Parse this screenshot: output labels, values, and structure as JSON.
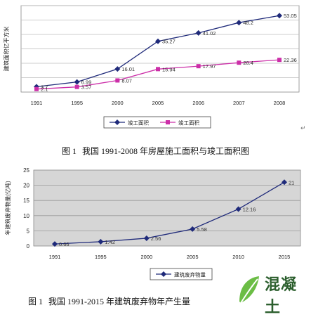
{
  "captions": {
    "fig1_label": "图 1",
    "fig1_text": "我国 1991-2008 年房屋施工面积与竣工面积图",
    "fig2_label": "图 1",
    "fig2_text": "我国 1991-2015 年建筑废弃物年产生量"
  },
  "logo": {
    "text": "混凝土"
  },
  "chart_data": [
    {
      "type": "line",
      "title": "",
      "ylabel": "建筑面积亿平方米",
      "xlabel": "",
      "categories": [
        "1991",
        "1995",
        "2000",
        "2005",
        "2006",
        "2007",
        "2008"
      ],
      "ylim": [
        0,
        60
      ],
      "grid": true,
      "legend": "bottom",
      "series": [
        {
          "name": "竣工面积",
          "color": "#1f2a7a",
          "marker": "diamond",
          "values": [
            3.7,
            6.99,
            16.01,
            35.27,
            41.02,
            48.2,
            53.05
          ],
          "labels": [
            "3.7",
            "6.99",
            "16.01",
            "35.27",
            "41.02",
            "48.2",
            "53.05"
          ]
        },
        {
          "name": "竣工面积",
          "color": "#cc2ea8",
          "marker": "square",
          "values": [
            2.1,
            3.57,
            8.07,
            15.94,
            17.97,
            20.4,
            22.36
          ],
          "labels": [
            "2.1",
            "3.57",
            "8.07",
            "15.94",
            "17.97",
            "20.4",
            "22.36"
          ]
        }
      ]
    },
    {
      "type": "line",
      "title": "",
      "ylabel": "年建筑废弃物量(亿吨)",
      "xlabel": "",
      "categories": [
        "1991",
        "1995",
        "2000",
        "2005",
        "2010",
        "2015"
      ],
      "ylim": [
        0,
        25
      ],
      "yticks": [
        0,
        5,
        10,
        15,
        20,
        25
      ],
      "grid": true,
      "background": "#d6d6d6",
      "legend": "bottom",
      "series": [
        {
          "name": "建筑废弃物量",
          "color": "#1f2a7a",
          "marker": "diamond",
          "values": [
            0.66,
            1.42,
            2.56,
            5.58,
            12.16,
            21
          ],
          "labels": [
            "0.66",
            "1.42",
            "2.56",
            "5.58",
            "12.16",
            "21"
          ]
        }
      ]
    }
  ]
}
